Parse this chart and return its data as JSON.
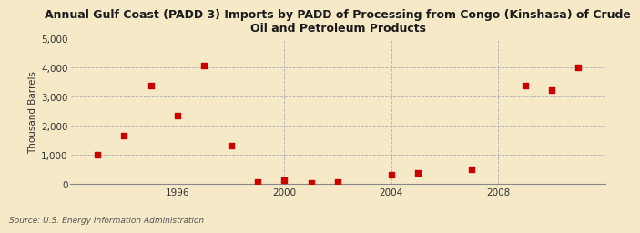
{
  "title": "Annual Gulf Coast (PADD 3) Imports by PADD of Processing from Congo (Kinshasa) of Crude\nOil and Petroleum Products",
  "ylabel": "Thousand Barrels",
  "source": "Source: U.S. Energy Information Administration",
  "background_color": "#f5e9c8",
  "plot_background_color": "#f5e9c8",
  "marker_color": "#cc0000",
  "marker_size": 4,
  "xlim": [
    1992,
    2012
  ],
  "ylim": [
    0,
    5000
  ],
  "yticks": [
    0,
    1000,
    2000,
    3000,
    4000,
    5000
  ],
  "xticks": [
    1996,
    2000,
    2004,
    2008
  ],
  "data_x": [
    1993,
    1994,
    1995,
    1996,
    1997,
    1998,
    1999,
    2000,
    2001,
    2002,
    2004,
    2005,
    2007,
    2009,
    2010,
    2011
  ],
  "data_y": [
    1000,
    1650,
    3380,
    2350,
    4070,
    1320,
    50,
    130,
    40,
    70,
    310,
    370,
    500,
    3380,
    3220,
    4000
  ]
}
